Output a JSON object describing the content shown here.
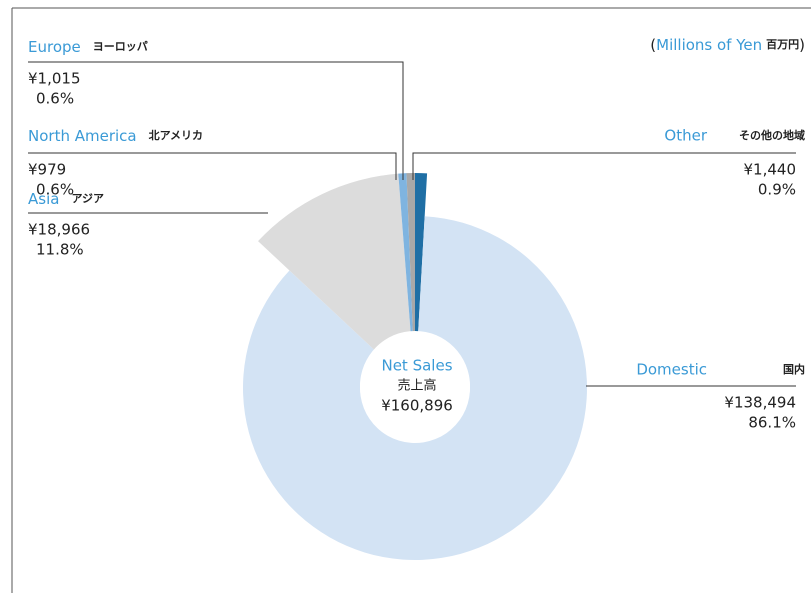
{
  "chart_data": {
    "type": "donut",
    "unit_open": "(",
    "unit": "Millions of Yen",
    "unit_ja": "百万円",
    "unit_close": ")",
    "center_title": "Net Sales",
    "center_title_ja": "売上高",
    "total": 160896,
    "total_label": "¥160,896",
    "series": [
      {
        "name": "Other",
        "name_ja": "その他の地域",
        "color": "#1f6fa5",
        "value": 1440,
        "value_label": "¥1,440",
        "percent": 0.9,
        "percent_label": "0.9%"
      },
      {
        "name": "Domestic",
        "name_ja": "国内",
        "color": "#d3e3f4",
        "value": 138494,
        "value_label": "¥138,494",
        "percent": 86.1,
        "percent_label": "86.1%"
      },
      {
        "name": "Asia",
        "name_ja": "アジア",
        "color": "#dcdcdc",
        "value": 18966,
        "value_label": "¥18,966",
        "percent": 11.8,
        "percent_label": "11.8%"
      },
      {
        "name": "North America",
        "name_ja": "北アメリカ",
        "color": "#7fb4e0",
        "value": 979,
        "value_label": "¥979",
        "percent": 0.6,
        "percent_label": "0.6%"
      },
      {
        "name": "Europe",
        "name_ja": "ヨーロッパ",
        "color": "#a8a8a8",
        "value": 1015,
        "value_label": "¥1,015",
        "percent": 0.6,
        "percent_label": "0.6%"
      }
    ]
  }
}
